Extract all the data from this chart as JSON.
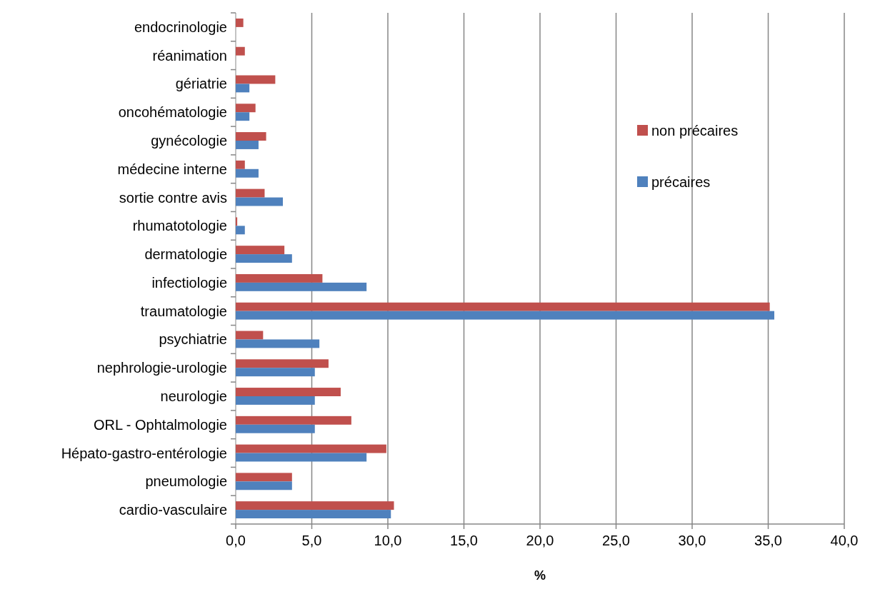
{
  "chart_data": {
    "type": "bar",
    "orientation": "horizontal",
    "xlabel": "%",
    "categories": [
      "endocrinologie",
      "réanimation",
      "gériatrie",
      "oncohématologie",
      "gynécologie",
      "médecine interne",
      "sortie contre avis",
      "rhumatotologie",
      "dermatologie",
      "infectiologie",
      "traumatologie",
      "psychiatrie",
      "nephrologie-urologie",
      "neurologie",
      "ORL - Ophtalmologie",
      "Hépato-gastro-entérologie",
      "pneumologie",
      "cardio-vasculaire"
    ],
    "series": [
      {
        "name": "non précaires",
        "color": "#c0504d",
        "values": [
          0.5,
          0.6,
          2.6,
          1.3,
          2.0,
          0.6,
          1.9,
          0.1,
          3.2,
          5.7,
          35.1,
          1.8,
          6.1,
          6.9,
          7.6,
          9.9,
          3.7,
          10.4
        ]
      },
      {
        "name": "précaires",
        "color": "#4f81bd",
        "values": [
          0,
          0,
          0.9,
          0.9,
          1.5,
          1.5,
          3.1,
          0.6,
          3.7,
          8.6,
          35.4,
          5.5,
          5.2,
          5.2,
          5.2,
          8.6,
          3.7,
          10.2
        ]
      }
    ],
    "xlim": [
      0,
      40
    ],
    "xticks": [
      {
        "value": 0,
        "label": "0,0"
      },
      {
        "value": 5,
        "label": "5,0"
      },
      {
        "value": 10,
        "label": "10,0"
      },
      {
        "value": 15,
        "label": "15,0"
      },
      {
        "value": 20,
        "label": "20,0"
      },
      {
        "value": 25,
        "label": "25,0"
      },
      {
        "value": 30,
        "label": "30,0"
      },
      {
        "value": 35,
        "label": "35,0"
      },
      {
        "value": 40,
        "label": "40,0"
      }
    ],
    "grid": "x",
    "legend": "right"
  }
}
